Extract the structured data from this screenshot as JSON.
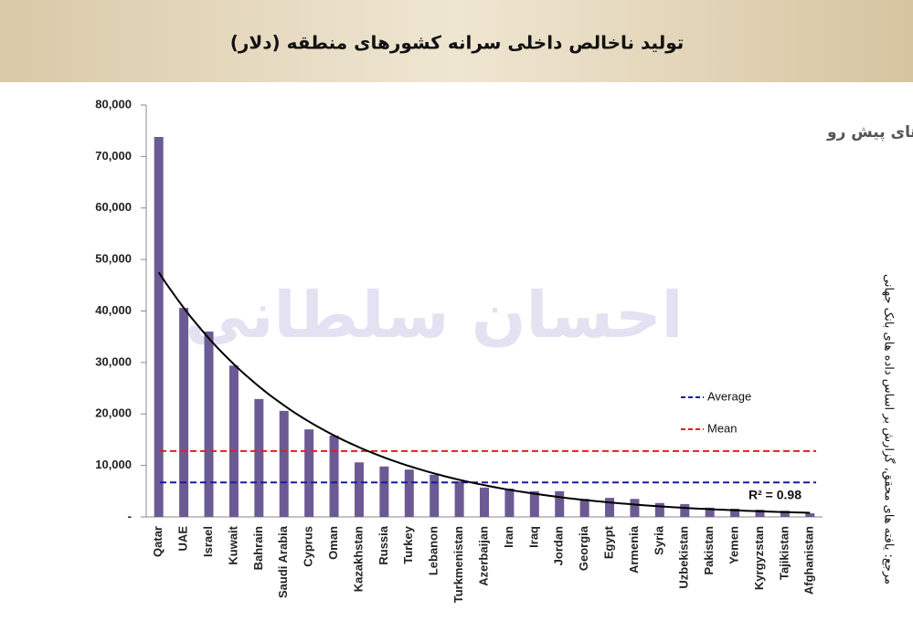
{
  "chart_data": {
    "type": "bar",
    "title": "تولید ناخالص داخلی سرانه کشورهای منطقه (دلار)",
    "subtitle": "نابرابری‌ها و بحران‌های منطقه‌ای و چالش‌های پیش رو",
    "watermark": "احسان سلطانی",
    "source_note": "مرجع: یافته های محقق، گزارش بر اساس داده های بانک جهانی",
    "categories": [
      "Qatar",
      "UAE",
      "Israel",
      "Kuwait",
      "Bahrain",
      "Saudi Arabia",
      "Cyprus",
      "Oman",
      "Kazakhstan",
      "Russia",
      "Turkey",
      "Lebanon",
      "Turkmenistan",
      "Azerbaijan",
      "Iran",
      "Iraq",
      "Jordan",
      "Georgia",
      "Egypt",
      "Armenia",
      "Syria",
      "Uzbekistan",
      "Pakistan",
      "Yemen",
      "Kyrgyzstan",
      "Tajikistan",
      "Afghanistan"
    ],
    "values": [
      73800,
      40600,
      36000,
      29400,
      22900,
      20600,
      17000,
      15800,
      10600,
      9800,
      9200,
      8200,
      6900,
      5700,
      5500,
      5000,
      5000,
      3500,
      3700,
      3500,
      2700,
      2500,
      1800,
      1600,
      1400,
      1200,
      700
    ],
    "color": "#6c5a94",
    "ylim": [
      0,
      80000
    ],
    "yticks": [
      {
        "value": 0,
        "label": "-"
      },
      {
        "value": 10000,
        "label": "10,000"
      },
      {
        "value": 20000,
        "label": "20,000"
      },
      {
        "value": 30000,
        "label": "30,000"
      },
      {
        "value": 40000,
        "label": "40,000"
      },
      {
        "value": 50000,
        "label": "50,000"
      },
      {
        "value": 60000,
        "label": "60,000"
      },
      {
        "value": 70000,
        "label": "70,000"
      },
      {
        "value": 80000,
        "label": "80,000"
      }
    ],
    "reference_lines": [
      {
        "name": "Average",
        "color": "#1a1aa0",
        "value": 6700
      },
      {
        "name": "Mean",
        "color": "#e02020",
        "value": 12800
      }
    ],
    "trendline": {
      "type": "exponential",
      "label": "R² = 0.98",
      "values": [
        47500,
        800
      ]
    }
  }
}
